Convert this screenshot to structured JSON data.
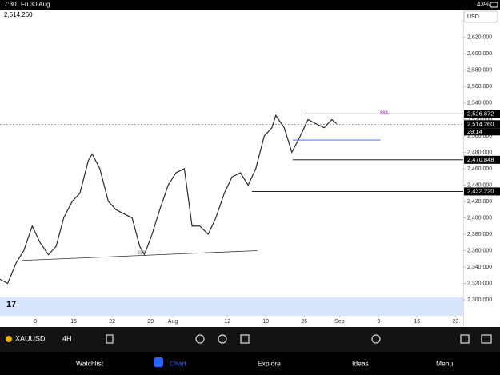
{
  "status_bar": {
    "time": "7:30",
    "date": "Fri 30 Aug",
    "battery": "43%"
  },
  "chart_data": {
    "type": "line",
    "currency": "USD",
    "last_price": "2,514.260",
    "countdown": "29:14",
    "x": [
      0,
      1.0,
      2.1,
      3.1,
      4.2,
      5.2,
      6.3,
      7.3,
      8.3,
      9.4,
      10.4,
      11.5,
      12.0,
      13.0,
      14.1,
      15.1,
      16.1,
      17.2,
      18.2,
      18.8,
      19.8,
      20.8,
      21.9,
      22.9,
      24.0,
      25.0,
      26.0,
      27.1,
      28.1,
      29.2,
      30.2,
      31.3,
      32.3,
      33.3,
      34.4,
      35.4,
      35.9,
      37.0,
      38.0,
      39.1,
      40.1,
      41.1,
      42.2,
      43.2,
      43.8
    ],
    "series": [
      {
        "color": "#2b2b2b",
        "values": [
          2325,
          2320,
          2345,
          2360,
          2390,
          2370,
          2355,
          2365,
          2400,
          2420,
          2430,
          2470,
          2478,
          2460,
          2420,
          2410,
          2405,
          2400,
          2365,
          2355,
          2380,
          2410,
          2440,
          2455,
          2460,
          2390,
          2390,
          2380,
          2400,
          2430,
          2450,
          2455,
          2440,
          2460,
          2500,
          2510,
          2525,
          2510,
          2480,
          2500,
          2520,
          2515,
          2510,
          2520,
          2515
        ]
      }
    ],
    "xlim": [
      0,
      60.3
    ],
    "ylim": [
      2280.5,
      2654
    ],
    "xticks": [
      {
        "value": 4.6,
        "label": "8"
      },
      {
        "value": 9.6,
        "label": "15"
      },
      {
        "value": 14.6,
        "label": "22"
      },
      {
        "value": 19.6,
        "label": "29"
      },
      {
        "value": 22.5,
        "label": "Aug"
      },
      {
        "value": 29.6,
        "label": "12"
      },
      {
        "value": 34.6,
        "label": "19"
      },
      {
        "value": 39.6,
        "label": "26"
      },
      {
        "value": 44.2,
        "label": "Sep"
      },
      {
        "value": 49.3,
        "label": "9"
      },
      {
        "value": 54.3,
        "label": "16"
      },
      {
        "value": 59.3,
        "label": "23"
      }
    ],
    "yticks": [
      {
        "value": 2300,
        "label": "2,300.000"
      },
      {
        "value": 2320,
        "label": "2,320.000"
      },
      {
        "value": 2340,
        "label": "2,340.000"
      },
      {
        "value": 2360,
        "label": "2,360.000"
      },
      {
        "value": 2380,
        "label": "2,380.000"
      },
      {
        "value": 2400,
        "label": "2,400.000"
      },
      {
        "value": 2420,
        "label": "2,420.000"
      },
      {
        "value": 2440,
        "label": "2,440.000"
      },
      {
        "value": 2460,
        "label": "2,460.000"
      },
      {
        "value": 2480,
        "label": "2,480.000"
      },
      {
        "value": 2500,
        "label": "2,500.000"
      },
      {
        "value": 2520,
        "label": "2,520.000"
      },
      {
        "value": 2540,
        "label": "2,540.000"
      },
      {
        "value": 2560,
        "label": "2,560.000"
      },
      {
        "value": 2580,
        "label": "2,580.000"
      },
      {
        "value": 2600,
        "label": "2,600.000"
      },
      {
        "value": 2620,
        "label": "2,620.000"
      }
    ],
    "levels": [
      {
        "value": 2526.872,
        "label": "2,526.872",
        "from": 39.6,
        "to": 60.3,
        "color": "#000000"
      },
      {
        "value": 2514.26,
        "label": "2,514.260",
        "from": 0,
        "to": 60.3,
        "color": "#777777"
      },
      {
        "value": 2470.848,
        "label": "2,470.848",
        "from": 38.1,
        "to": 60.3,
        "color": "#000000"
      },
      {
        "value": 2432.22,
        "label": "2,432.220",
        "from": 32.8,
        "to": 60.3,
        "color": "#000000"
      },
      {
        "value": 2495,
        "from": 38.1,
        "to": 49.5,
        "color": "#2962ff"
      }
    ],
    "annotations": [
      {
        "text": "$$$",
        "x": 50,
        "y": 2526.872,
        "color": "#9c27b0"
      },
      {
        "text": "$$$",
        "x": 18.4,
        "y": 2356,
        "color": "#888888"
      }
    ],
    "trendline": {
      "x": [
        2.9,
        33.5
      ],
      "y": [
        2348,
        2360
      ]
    }
  },
  "toolbar": {
    "symbol": "XAUUSD",
    "interval": "4H"
  },
  "nav": {
    "items": [
      "Watchlist",
      "Chart",
      "Explore",
      "Ideas",
      "Menu"
    ]
  }
}
